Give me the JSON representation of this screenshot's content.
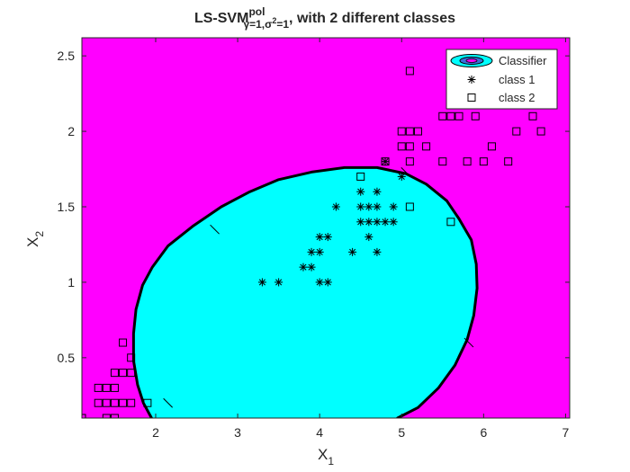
{
  "chart_data": {
    "type": "scatter",
    "title": {
      "main": "LS-SVM",
      "superscript": "pol",
      "subscript": "γ=1,σ",
      "subscript_sup": "2",
      "subscript_end": "=1",
      "tail": ", with 2 different classes"
    },
    "xlabel": {
      "main": "X",
      "sub": "1"
    },
    "ylabel": {
      "main": "X",
      "sub": "2"
    },
    "xlim": [
      1.1,
      7.05
    ],
    "ylim": [
      0.1,
      2.62
    ],
    "xticks": [
      2,
      3,
      4,
      5,
      6,
      7
    ],
    "yticks": [
      0.5,
      1,
      1.5,
      2,
      2.5
    ],
    "grid": false,
    "legend_position": "top-right",
    "colors": {
      "background_region": "#ff00ff",
      "classifier_region": "#00ffff",
      "boundary": "#000000"
    },
    "classifier_boundary": [
      [
        1.95,
        0.1
      ],
      [
        1.85,
        0.2
      ],
      [
        1.78,
        0.32
      ],
      [
        1.73,
        0.48
      ],
      [
        1.73,
        0.66
      ],
      [
        1.76,
        0.82
      ],
      [
        1.84,
        0.98
      ],
      [
        1.96,
        1.1
      ],
      [
        2.15,
        1.24
      ],
      [
        2.45,
        1.37
      ],
      [
        2.8,
        1.5
      ],
      [
        3.15,
        1.6
      ],
      [
        3.5,
        1.68
      ],
      [
        3.9,
        1.73
      ],
      [
        4.3,
        1.76
      ],
      [
        4.7,
        1.76
      ],
      [
        5.05,
        1.72
      ],
      [
        5.3,
        1.65
      ],
      [
        5.55,
        1.54
      ],
      [
        5.7,
        1.42
      ],
      [
        5.85,
        1.28
      ],
      [
        5.91,
        1.12
      ],
      [
        5.92,
        0.96
      ],
      [
        5.88,
        0.78
      ],
      [
        5.8,
        0.62
      ],
      [
        5.65,
        0.45
      ],
      [
        5.45,
        0.3
      ],
      [
        5.2,
        0.17
      ],
      [
        4.95,
        0.1
      ]
    ],
    "boundary_markers": [
      [
        2.72,
        1.35
      ],
      [
        5.05,
        1.73
      ],
      [
        5.82,
        0.6
      ],
      [
        2.15,
        0.2
      ]
    ],
    "series": [
      {
        "name": "class 1",
        "marker": "asterisk",
        "points": [
          [
            3.3,
            1.0
          ],
          [
            3.5,
            1.0
          ],
          [
            3.8,
            1.1
          ],
          [
            3.9,
            1.1
          ],
          [
            3.9,
            1.2
          ],
          [
            4.0,
            1.2
          ],
          [
            4.0,
            1.3
          ],
          [
            4.1,
            1.3
          ],
          [
            4.0,
            1.0
          ],
          [
            4.1,
            1.0
          ],
          [
            4.2,
            1.5
          ],
          [
            4.4,
            1.2
          ],
          [
            4.5,
            1.4
          ],
          [
            4.5,
            1.5
          ],
          [
            4.5,
            1.6
          ],
          [
            4.6,
            1.3
          ],
          [
            4.6,
            1.4
          ],
          [
            4.6,
            1.5
          ],
          [
            4.7,
            1.2
          ],
          [
            4.7,
            1.4
          ],
          [
            4.7,
            1.5
          ],
          [
            4.7,
            1.6
          ],
          [
            4.8,
            1.4
          ],
          [
            4.8,
            1.8
          ],
          [
            4.9,
            1.4
          ],
          [
            4.9,
            1.5
          ],
          [
            5.0,
            1.7
          ]
        ]
      },
      {
        "name": "class 2",
        "marker": "square",
        "points": [
          [
            1.1,
            0.1
          ],
          [
            1.3,
            0.2
          ],
          [
            1.3,
            0.3
          ],
          [
            1.4,
            0.1
          ],
          [
            1.4,
            0.2
          ],
          [
            1.4,
            0.3
          ],
          [
            1.5,
            0.1
          ],
          [
            1.5,
            0.2
          ],
          [
            1.5,
            0.3
          ],
          [
            1.5,
            0.4
          ],
          [
            1.6,
            0.2
          ],
          [
            1.6,
            0.4
          ],
          [
            1.6,
            0.6
          ],
          [
            1.7,
            0.2
          ],
          [
            1.7,
            0.4
          ],
          [
            1.7,
            0.5
          ],
          [
            1.9,
            0.2
          ],
          [
            4.5,
            1.7
          ],
          [
            4.8,
            1.8
          ],
          [
            5.0,
            1.9
          ],
          [
            5.0,
            2.0
          ],
          [
            5.1,
            1.5
          ],
          [
            5.1,
            1.8
          ],
          [
            5.1,
            1.9
          ],
          [
            5.1,
            2.0
          ],
          [
            5.1,
            2.4
          ],
          [
            5.2,
            2.0
          ],
          [
            5.3,
            1.9
          ],
          [
            5.5,
            1.8
          ],
          [
            5.5,
            2.1
          ],
          [
            5.6,
            1.4
          ],
          [
            5.6,
            2.1
          ],
          [
            5.7,
            2.1
          ],
          [
            5.8,
            1.8
          ],
          [
            5.9,
            2.1
          ],
          [
            6.0,
            1.8
          ],
          [
            6.1,
            1.9
          ],
          [
            6.3,
            1.8
          ],
          [
            6.4,
            2.0
          ],
          [
            6.6,
            2.1
          ],
          [
            6.7,
            2.0
          ]
        ]
      }
    ],
    "legend": [
      "Classifier",
      "class 1",
      "class 2"
    ]
  }
}
